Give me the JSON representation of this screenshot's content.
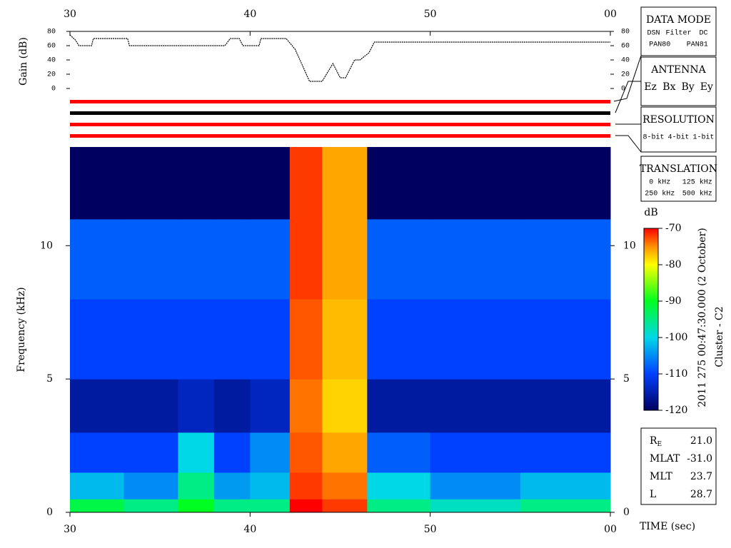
{
  "chart_data": [
    {
      "type": "line",
      "ylabel": "Gain (dB)",
      "x": [
        30,
        30.3,
        30.5,
        31.2,
        31.3,
        33.2,
        33.3,
        38.6,
        38.9,
        39.4,
        39.6,
        40.5,
        40.6,
        42,
        42.5,
        43.3,
        44,
        44.6,
        45,
        45.3,
        45.8,
        46.1,
        46.6,
        46.9,
        60
      ],
      "values": [
        75,
        68,
        60,
        60,
        70,
        70,
        60,
        60,
        70,
        70,
        60,
        60,
        70,
        70,
        55,
        10,
        10,
        35,
        15,
        15,
        40,
        40,
        50,
        65,
        65
      ],
      "color": "#000000",
      "xlim": [
        30,
        60
      ],
      "xticks": [
        30,
        40,
        50,
        {
          "value": 60,
          "label": "00"
        }
      ],
      "ylim": [
        0,
        80
      ],
      "yticks": [
        0,
        20,
        40,
        60,
        80
      ]
    },
    {
      "type": "heatmap",
      "ylabel": "Frequency (kHz)",
      "xlabel": "TIME (sec)",
      "zlabel": "dB",
      "x_edges": [
        30,
        33,
        36,
        38,
        40,
        42.2,
        44,
        46.5,
        50,
        55,
        60
      ],
      "y_edges": [
        0,
        0.5,
        1.5,
        3,
        5,
        8,
        11,
        13.7
      ],
      "z": [
        [
          -92,
          -95,
          -90,
          -95,
          -95,
          -70,
          -72,
          -95,
          -98,
          -95
        ],
        [
          -102,
          -105,
          -95,
          -104,
          -102,
          -72,
          -74,
          -100,
          -105,
          -102
        ],
        [
          -110,
          -110,
          -100,
          -110,
          -105,
          -73,
          -76,
          -108,
          -110,
          -110
        ],
        [
          -116,
          -116,
          -114,
          -116,
          -114,
          -74,
          -78,
          -116,
          -116,
          -116
        ],
        [
          -110,
          -110,
          -110,
          -110,
          -110,
          -73,
          -77,
          -110,
          -110,
          -110
        ],
        [
          -108,
          -108,
          -108,
          -108,
          -108,
          -72,
          -76,
          -108,
          -108,
          -108
        ],
        [
          -120,
          -120,
          -120,
          -120,
          -120,
          -72,
          -76,
          -120,
          -120,
          -120
        ]
      ],
      "xlim": [
        30,
        60
      ],
      "xticks": [
        30,
        40,
        50,
        {
          "value": 60,
          "label": "00"
        }
      ],
      "ylim": [
        0,
        13.7
      ],
      "yticks": [
        0,
        5,
        10
      ],
      "zlim": [
        -120,
        -70
      ],
      "zticks": [
        -70,
        -80,
        -90,
        -100,
        -110,
        -120
      ],
      "colorscale": [
        {
          "value": -120,
          "color": "#000060"
        },
        {
          "value": -110,
          "color": "#0040ff"
        },
        {
          "value": -100,
          "color": "#00d8e8"
        },
        {
          "value": -90,
          "color": "#00ff20"
        },
        {
          "value": -80,
          "color": "#ffff00"
        },
        {
          "value": -75,
          "color": "#ff9000"
        },
        {
          "value": -70,
          "color": "#ff0000"
        }
      ]
    }
  ],
  "side_title": [
    "2011 275 00:47:30.000 (2 October)",
    "Cluster - C2"
  ],
  "panels": [
    {
      "title": "DATA MODE",
      "rows": [
        [
          {
            "text": "DSN",
            "color": "#ff0000"
          },
          {
            "text": "Filter",
            "color": "#00dd00"
          },
          {
            "text": "DC",
            "color": "#0000ff"
          }
        ],
        [
          {
            "text": "PAN80",
            "color": "#000000"
          },
          {
            "text": "PAN81",
            "color": "#00cccc"
          }
        ]
      ]
    },
    {
      "title": "ANTENNA",
      "rows": [
        [
          {
            "text": "Ez",
            "color": "#ff0000"
          },
          {
            "text": "Bx",
            "color": "#00cc00"
          },
          {
            "text": "By",
            "color": "#0000ff"
          },
          {
            "text": "Ey",
            "color": "#000000"
          }
        ]
      ]
    },
    {
      "title": "RESOLUTION",
      "rows": [
        [
          {
            "text": "8-bit",
            "color": "#ff0000"
          },
          {
            "text": "4-bit",
            "color": "#00cc00"
          },
          {
            "text": "1-bit",
            "color": "#0000ff"
          }
        ]
      ]
    },
    {
      "title": "TRANSLATION",
      "rows": [
        [
          {
            "text": "0 kHz",
            "color": "#ff0000"
          },
          {
            "text": "125 kHz",
            "color": "#00cc00"
          }
        ],
        [
          {
            "text": "250 kHz",
            "color": "#0000ff"
          },
          {
            "text": "500 kHz",
            "color": "#000000"
          }
        ]
      ]
    }
  ],
  "info": [
    {
      "label": "R",
      "sub": "E",
      "value": "21.0"
    },
    {
      "label": "MLAT",
      "value": "-31.0"
    },
    {
      "label": "MLT",
      "value": "23.7"
    },
    {
      "label": "L",
      "value": "28.7"
    }
  ]
}
